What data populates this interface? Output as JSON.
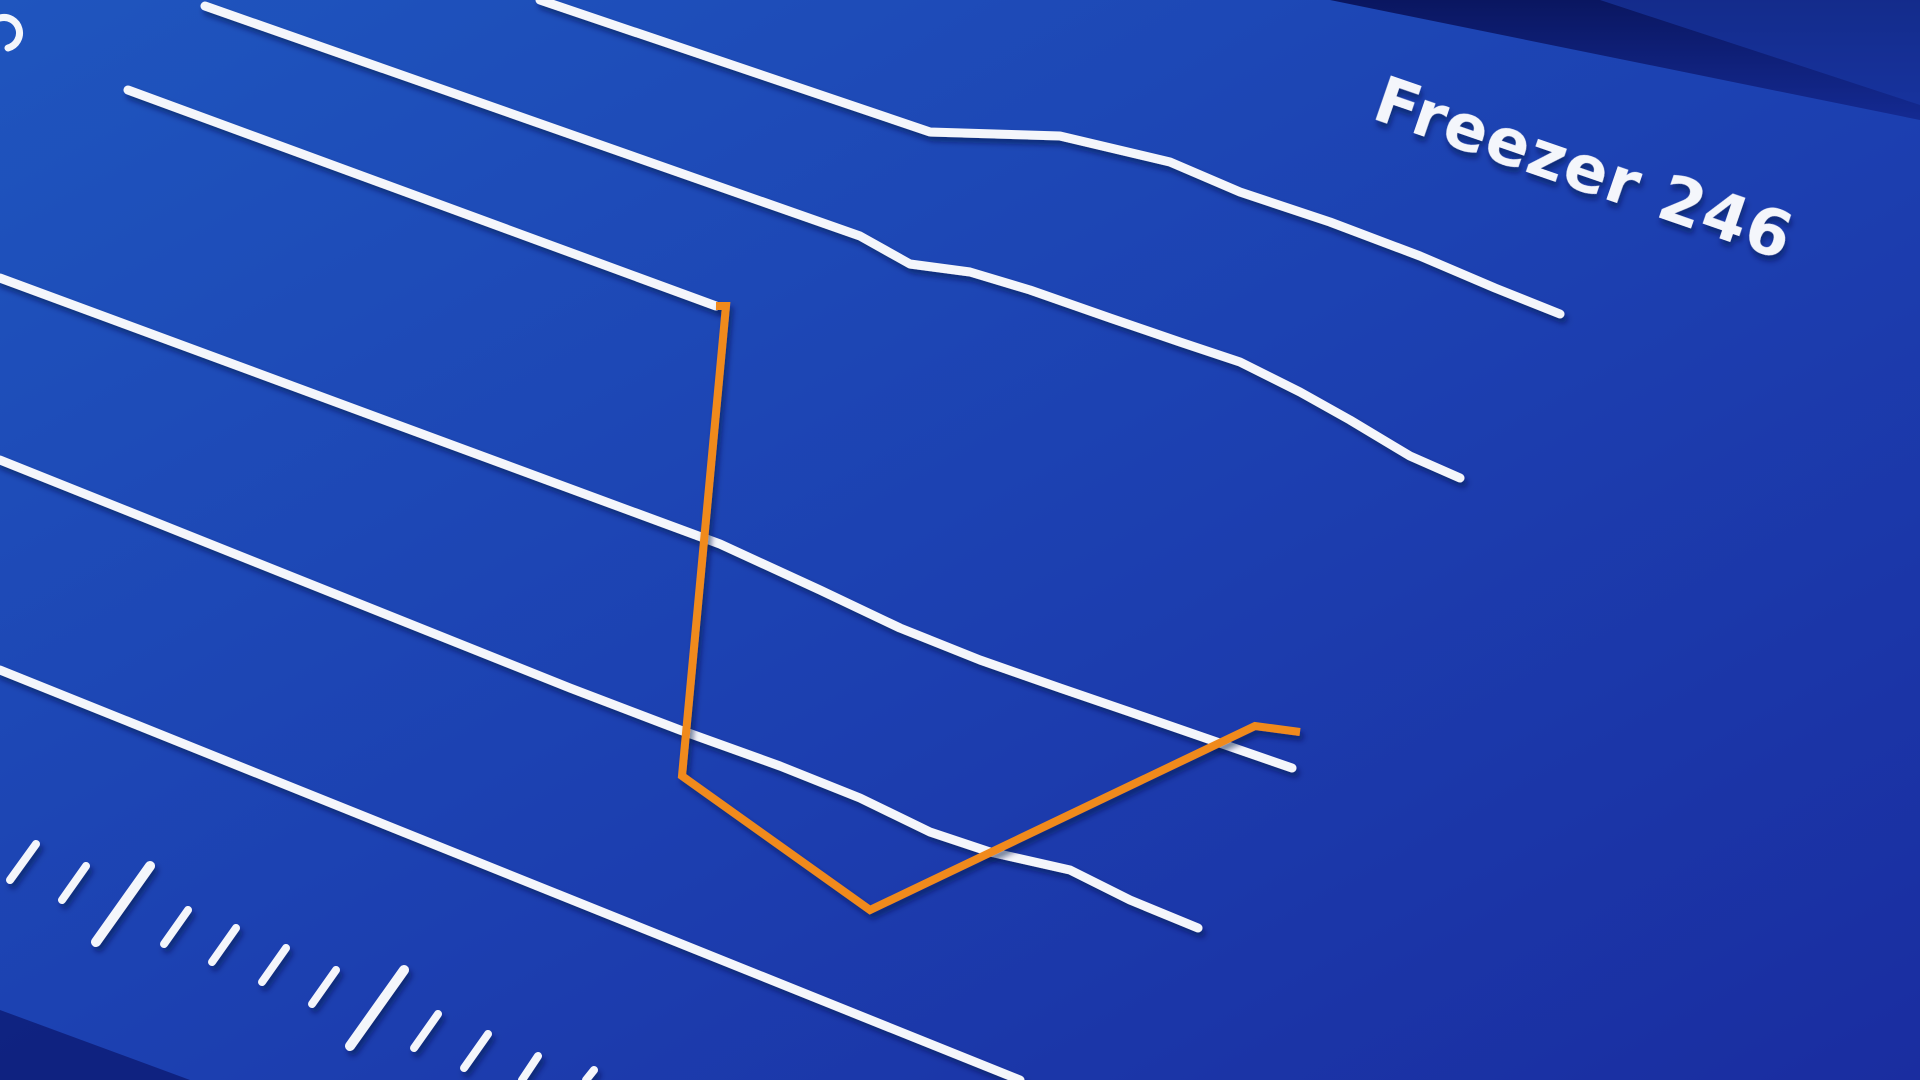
{
  "panel": {
    "title": "Freezer 246"
  },
  "colors": {
    "background_top": "#1d4fb8",
    "background_bottom": "#1a2fa6",
    "dark_edge": "#0b1a6e",
    "line_white": "#f4f6fb",
    "line_orange": "#f08a1e",
    "text_white": "#f4f6fb"
  }
}
